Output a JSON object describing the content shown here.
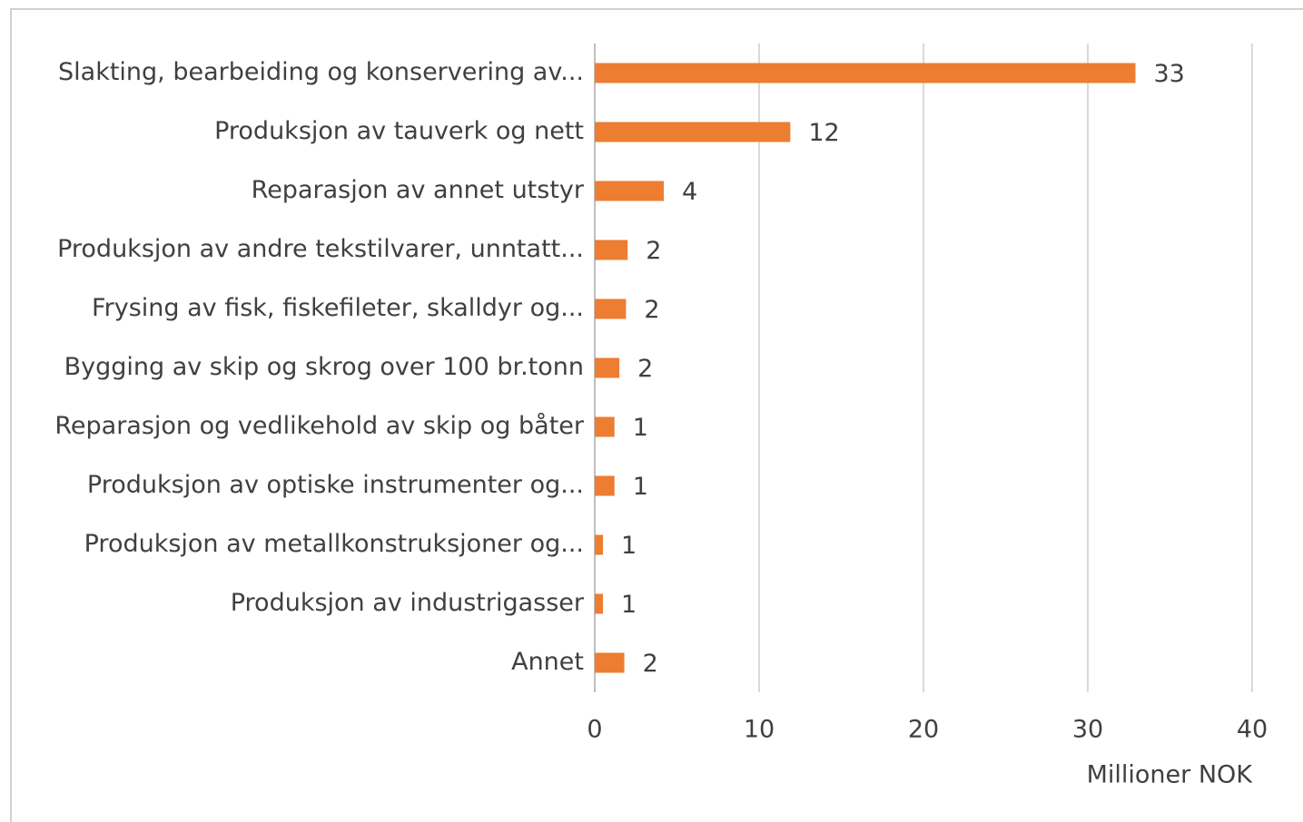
{
  "chart_data": {
    "type": "barh",
    "categories": [
      "Slakting, bearbeiding og konservering av...",
      "Produksjon av tauverk og nett",
      "Reparasjon av annet utstyr",
      "Produksjon av andre tekstilvarer, unntatt...",
      "Frysing av fisk, fiskefileter, skalldyr og...",
      "Bygging av skip og skrog over 100 br.tonn",
      "Reparasjon og vedlikehold av skip og båter",
      "Produksjon av optiske instrumenter og...",
      "Produksjon av metallkonstruksjoner og...",
      "Produksjon av industrigasser",
      "Annet"
    ],
    "values": [
      32.9,
      11.9,
      4.2,
      2.0,
      1.9,
      1.5,
      1.2,
      1.2,
      0.5,
      0.5,
      1.8
    ],
    "value_labels": [
      "33",
      "12",
      "4",
      "2",
      "2",
      "2",
      "1",
      "1",
      "1",
      "1",
      "2"
    ],
    "color": "#ed7d31",
    "xlabel": "Millioner NOK",
    "xlim": [
      0,
      40
    ],
    "xticks": [
      0,
      10,
      20,
      30,
      40
    ],
    "grid": true
  }
}
